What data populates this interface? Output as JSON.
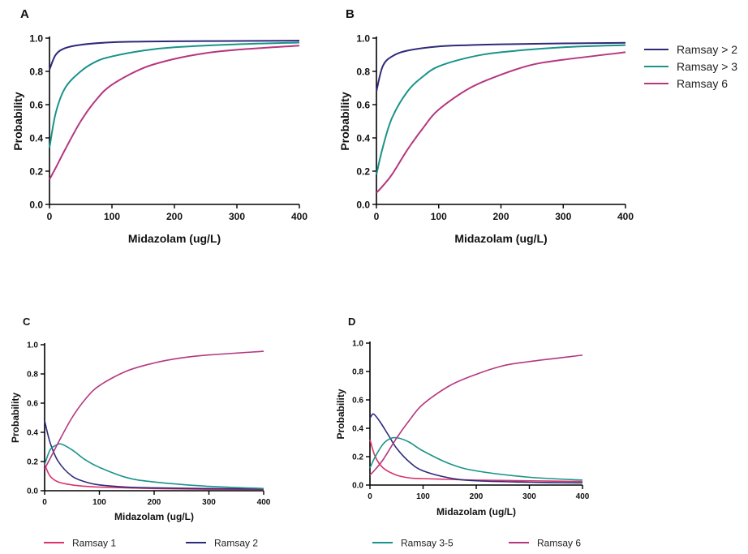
{
  "chart_data": [
    {
      "panel": "A",
      "type": "line",
      "xlabel": "Midazolam (ug/L)",
      "ylabel": "Probability",
      "xlim": [
        0,
        400
      ],
      "ylim": [
        0,
        1.0
      ],
      "xticks": [
        "0",
        "100",
        "200",
        "300",
        "400"
      ],
      "yticks": [
        "0.0",
        "0.2",
        "0.4",
        "0.6",
        "0.8",
        "1.0"
      ],
      "grid": false,
      "legend": "right of panel B",
      "series": [
        {
          "name": "Ramsay > 2",
          "color": "#2e2a7a",
          "x": [
            0,
            10,
            25,
            50,
            100,
            150,
            200,
            300,
            400
          ],
          "y": [
            0.81,
            0.9,
            0.94,
            0.96,
            0.975,
            0.979,
            0.981,
            0.983,
            0.985
          ]
        },
        {
          "name": "Ramsay > 3",
          "color": "#1a938a",
          "x": [
            0,
            10,
            25,
            50,
            75,
            100,
            150,
            200,
            300,
            400
          ],
          "y": [
            0.34,
            0.55,
            0.7,
            0.8,
            0.86,
            0.89,
            0.925,
            0.945,
            0.963,
            0.973
          ]
        },
        {
          "name": "Ramsay 6",
          "color": "#b5367f",
          "x": [
            0,
            10,
            25,
            50,
            75,
            100,
            150,
            200,
            250,
            300,
            400
          ],
          "y": [
            0.15,
            0.22,
            0.33,
            0.5,
            0.63,
            0.72,
            0.82,
            0.875,
            0.91,
            0.93,
            0.955
          ]
        }
      ]
    },
    {
      "panel": "B",
      "type": "line",
      "xlabel": "Midazolam (ug/L)",
      "ylabel": "Probability",
      "xlim": [
        0,
        400
      ],
      "ylim": [
        0,
        1.0
      ],
      "xticks": [
        "0",
        "100",
        "200",
        "300",
        "400"
      ],
      "yticks": [
        "0.0",
        "0.2",
        "0.4",
        "0.6",
        "0.8",
        "1.0"
      ],
      "grid": false,
      "legend": "right",
      "series": [
        {
          "name": "Ramsay > 2",
          "color": "#2e2a7a",
          "x": [
            0,
            10,
            25,
            50,
            100,
            150,
            200,
            300,
            400
          ],
          "y": [
            0.68,
            0.83,
            0.89,
            0.925,
            0.95,
            0.958,
            0.963,
            0.968,
            0.972
          ]
        },
        {
          "name": "Ramsay > 3",
          "color": "#1a938a",
          "x": [
            0,
            10,
            25,
            50,
            75,
            100,
            150,
            200,
            300,
            400
          ],
          "y": [
            0.18,
            0.34,
            0.52,
            0.68,
            0.77,
            0.83,
            0.885,
            0.915,
            0.945,
            0.958
          ]
        },
        {
          "name": "Ramsay 6",
          "color": "#b5367f",
          "x": [
            0,
            10,
            25,
            50,
            75,
            100,
            150,
            200,
            250,
            300,
            400
          ],
          "y": [
            0.07,
            0.11,
            0.18,
            0.33,
            0.46,
            0.57,
            0.7,
            0.78,
            0.84,
            0.87,
            0.915
          ]
        }
      ]
    },
    {
      "panel": "C",
      "type": "line",
      "xlabel": "Midazolam (ug/L)",
      "ylabel": "Probability",
      "xlim": [
        0,
        400
      ],
      "ylim": [
        0,
        1.0
      ],
      "xticks": [
        "0",
        "100",
        "200",
        "300",
        "400"
      ],
      "yticks": [
        "0.0",
        "0.2",
        "0.4",
        "0.6",
        "0.8",
        "1.0"
      ],
      "grid": false,
      "legend": "bottom",
      "series": [
        {
          "name": "Ramsay 1",
          "color": "#d9336a",
          "x": [
            0,
            10,
            25,
            50,
            75,
            100,
            150,
            200,
            300,
            400
          ],
          "y": [
            0.18,
            0.1,
            0.06,
            0.04,
            0.03,
            0.025,
            0.02,
            0.015,
            0.01,
            0.008
          ]
        },
        {
          "name": "Ramsay 2",
          "color": "#2e2a7a",
          "x": [
            0,
            10,
            25,
            50,
            75,
            100,
            150,
            200,
            300,
            400
          ],
          "y": [
            0.48,
            0.33,
            0.2,
            0.1,
            0.06,
            0.04,
            0.025,
            0.02,
            0.015,
            0.012
          ]
        },
        {
          "name": "Ramsay 3-5",
          "color": "#1a938a",
          "x": [
            0,
            10,
            20,
            30,
            50,
            75,
            100,
            150,
            200,
            300,
            400
          ],
          "y": [
            0.18,
            0.28,
            0.31,
            0.32,
            0.28,
            0.21,
            0.16,
            0.09,
            0.06,
            0.03,
            0.015
          ]
        },
        {
          "name": "Ramsay 6",
          "color": "#b5367f",
          "x": [
            0,
            10,
            25,
            50,
            75,
            100,
            150,
            200,
            250,
            300,
            400
          ],
          "y": [
            0.15,
            0.22,
            0.33,
            0.5,
            0.63,
            0.72,
            0.82,
            0.875,
            0.91,
            0.93,
            0.955
          ]
        }
      ]
    },
    {
      "panel": "D",
      "type": "line",
      "xlabel": "Midazolam (ug/L)",
      "ylabel": "Probability",
      "xlim": [
        0,
        400
      ],
      "ylim": [
        0,
        1.0
      ],
      "xticks": [
        "0",
        "100",
        "200",
        "300",
        "400"
      ],
      "yticks": [
        "0.0",
        "0.2",
        "0.4",
        "0.6",
        "0.8",
        "1.0"
      ],
      "grid": false,
      "legend": "bottom",
      "series": [
        {
          "name": "Ramsay 1",
          "color": "#d9336a",
          "x": [
            0,
            10,
            25,
            50,
            75,
            100,
            150,
            200,
            300,
            400
          ],
          "y": [
            0.32,
            0.2,
            0.12,
            0.07,
            0.05,
            0.045,
            0.04,
            0.035,
            0.03,
            0.025
          ]
        },
        {
          "name": "Ramsay 2",
          "color": "#2e2a7a",
          "x": [
            0,
            5,
            10,
            20,
            35,
            50,
            75,
            100,
            150,
            200,
            300,
            400
          ],
          "y": [
            0.47,
            0.5,
            0.49,
            0.44,
            0.35,
            0.26,
            0.16,
            0.1,
            0.05,
            0.03,
            0.02,
            0.015
          ]
        },
        {
          "name": "Ramsay 3-5",
          "color": "#1a938a",
          "x": [
            0,
            10,
            25,
            40,
            55,
            75,
            100,
            150,
            200,
            300,
            400
          ],
          "y": [
            0.12,
            0.2,
            0.29,
            0.33,
            0.33,
            0.3,
            0.24,
            0.15,
            0.1,
            0.055,
            0.035
          ]
        },
        {
          "name": "Ramsay 6",
          "color": "#b5367f",
          "x": [
            0,
            10,
            25,
            50,
            75,
            100,
            150,
            200,
            250,
            300,
            400
          ],
          "y": [
            0.07,
            0.11,
            0.18,
            0.33,
            0.46,
            0.57,
            0.7,
            0.78,
            0.84,
            0.87,
            0.915
          ]
        }
      ]
    }
  ],
  "legends": {
    "top": [
      "Ramsay > 2",
      "Ramsay > 3",
      "Ramsay 6"
    ],
    "bottom_left": [
      "Ramsay 1",
      "Ramsay 2"
    ],
    "bottom_right": [
      "Ramsay 3-5",
      "Ramsay 6"
    ]
  },
  "colors": {
    "ramsay_gt2": "#2e2a7a",
    "ramsay_gt3": "#1a938a",
    "ramsay_6": "#b5367f",
    "ramsay_1": "#d9336a",
    "ramsay_2": "#2e2a7a",
    "ramsay_3_5": "#1a938a"
  }
}
